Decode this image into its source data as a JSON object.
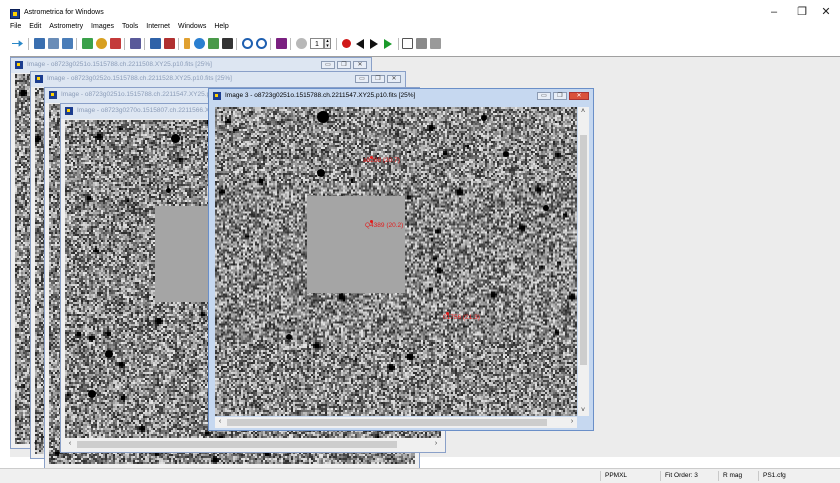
{
  "app": {
    "title": "Astrometrica for Windows"
  },
  "window_controls": {
    "minimize": "–",
    "restore": "❐",
    "close": "✕"
  },
  "menu": [
    "File",
    "Edit",
    "Astrometry",
    "Images",
    "Tools",
    "Internet",
    "Windows",
    "Help"
  ],
  "toolbar": {
    "frame_counter": "1",
    "icons": [
      "open-icon",
      "save-icon",
      "print-icon",
      "load-images-icon",
      "settings-icon",
      "star-icon",
      "blink-icon",
      "data-reduction-icon",
      "known-objects-icon",
      "moving-object-icon",
      "zoom-in-icon",
      "zoom-out-icon",
      "magnitude-icon",
      "record-icon",
      "stop-icon",
      "previous-icon",
      "next-icon",
      "play-icon",
      "tile-icon",
      "cascade-icon",
      "grid-icon"
    ]
  },
  "windows": [
    {
      "title": "Image - o8723g0251o.1515788.ch.2211508.XY25.p10.fits [25%]",
      "active": false
    },
    {
      "title": "Image - o8723g0252o.1515788.ch.2211528.XY25.p10.fits [25%]",
      "active": false
    },
    {
      "title": "Image - o8723g0251o.1515788.ch.2211547.XY25.p10.fits [25%]",
      "active": false
    },
    {
      "title": "Image - o8723g0270o.1515807.ch.2211566.XY25.p10.fits [25%]",
      "active": false
    },
    {
      "title": "Image 3 - o8723g0251o.1515788.ch.2211547.XY25.p10.fits [25%]",
      "active": true
    }
  ],
  "annotations": [
    {
      "label": "a8288 (20.7)"
    },
    {
      "label": "Q4389 (20.2)"
    },
    {
      "label": "01756 (21.3)"
    }
  ],
  "statusbar": {
    "catalog": "PPMXL",
    "fit_order": "Fit Order: 3",
    "mag_band": "R mag",
    "config": "PS1.cfg"
  },
  "colors": {
    "title_active": "#c6d8f0",
    "title_inactive": "#dde6f2",
    "annotation": "#e31a1a",
    "close_button": "#d9513c"
  }
}
